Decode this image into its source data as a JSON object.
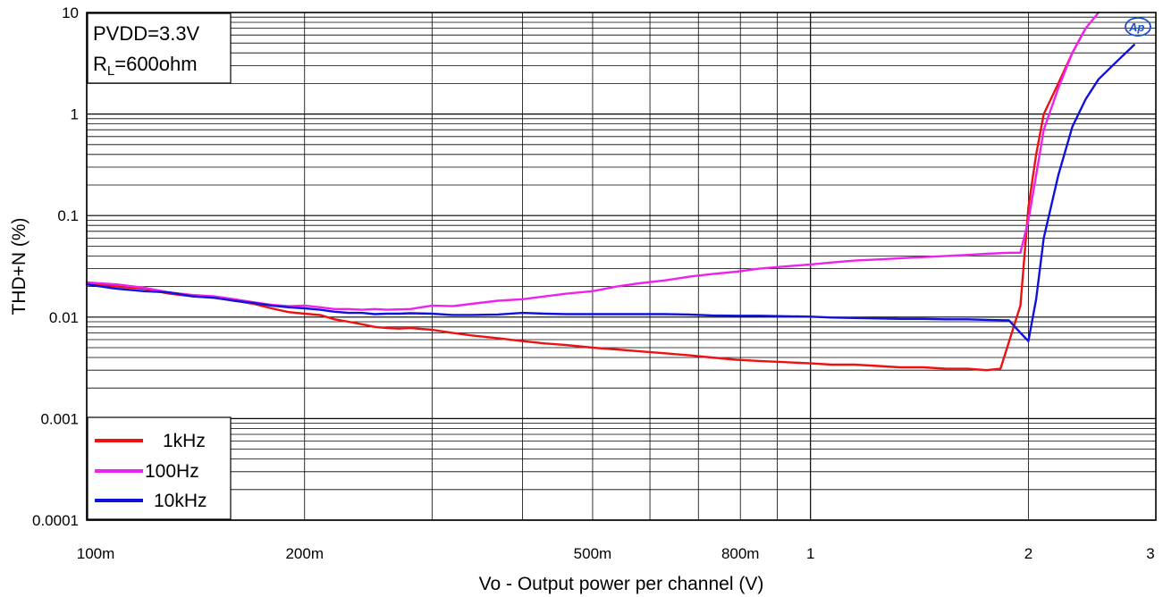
{
  "chart_data": {
    "type": "line",
    "xlabel": "Vo - Output power per channel (V)",
    "ylabel": "THD+N (%)",
    "x_scale": "log",
    "y_scale": "log",
    "xlim": [
      0.1,
      3
    ],
    "ylim": [
      0.0001,
      10
    ],
    "x_ticks": [
      {
        "value": 0.1,
        "label": "100m"
      },
      {
        "value": 0.2,
        "label": "200m"
      },
      {
        "value": 0.5,
        "label": "500m"
      },
      {
        "value": 0.8,
        "label": "800m"
      },
      {
        "value": 1,
        "label": "1"
      },
      {
        "value": 2,
        "label": "2"
      },
      {
        "value": 3,
        "label": "3"
      }
    ],
    "y_ticks": [
      {
        "value": 10,
        "label": "10"
      },
      {
        "value": 1,
        "label": "1"
      },
      {
        "value": 0.1,
        "label": "0.1"
      },
      {
        "value": 0.01,
        "label": "0.01"
      },
      {
        "value": 0.001,
        "label": "0.001"
      },
      {
        "value": 0.0001,
        "label": "0.0001"
      }
    ],
    "grid": true,
    "legend_position": "bottom-left",
    "annotations": {
      "line1": "PVDD=3.3V",
      "line2_main": "R",
      "line2_sub": "L",
      "line2_rest": "=600ohm"
    },
    "series": [
      {
        "name": "1kHz",
        "color": "#ee1111",
        "x": [
          0.1,
          0.11,
          0.12,
          0.13,
          0.14,
          0.15,
          0.16,
          0.17,
          0.18,
          0.19,
          0.2,
          0.21,
          0.22,
          0.23,
          0.24,
          0.25,
          0.26,
          0.27,
          0.28,
          0.3,
          0.32,
          0.34,
          0.37,
          0.4,
          0.43,
          0.46,
          0.5,
          0.54,
          0.58,
          0.63,
          0.68,
          0.73,
          0.79,
          0.85,
          0.92,
          1.0,
          1.07,
          1.15,
          1.24,
          1.33,
          1.43,
          1.54,
          1.65,
          1.75,
          1.83,
          1.95,
          2.0,
          2.05,
          2.1,
          2.2,
          2.3,
          2.4
        ],
        "y": [
          0.022,
          0.02,
          0.019,
          0.017,
          0.016,
          0.0155,
          0.0145,
          0.0135,
          0.0122,
          0.0112,
          0.0108,
          0.0105,
          0.0095,
          0.009,
          0.0085,
          0.008,
          0.0078,
          0.0077,
          0.0078,
          0.0075,
          0.007,
          0.0066,
          0.0062,
          0.0058,
          0.0055,
          0.0053,
          0.005,
          0.0048,
          0.0046,
          0.0044,
          0.0042,
          0.004,
          0.0038,
          0.0037,
          0.0036,
          0.0035,
          0.0034,
          0.0034,
          0.0033,
          0.0032,
          0.0032,
          0.0031,
          0.0031,
          0.003,
          0.0031,
          0.013,
          0.12,
          0.4,
          1.0,
          2.0,
          4.0,
          7.0
        ]
      },
      {
        "name": "100Hz",
        "color": "#ee22ee",
        "x": [
          0.1,
          0.11,
          0.12,
          0.13,
          0.14,
          0.15,
          0.16,
          0.17,
          0.18,
          0.19,
          0.2,
          0.21,
          0.22,
          0.23,
          0.24,
          0.25,
          0.26,
          0.27,
          0.28,
          0.3,
          0.32,
          0.34,
          0.37,
          0.4,
          0.43,
          0.46,
          0.5,
          0.54,
          0.58,
          0.63,
          0.68,
          0.73,
          0.79,
          0.85,
          0.92,
          1.0,
          1.07,
          1.15,
          1.24,
          1.33,
          1.43,
          1.54,
          1.65,
          1.75,
          1.88,
          1.95,
          2.0,
          2.05,
          2.1,
          2.2,
          2.3,
          2.4,
          2.5
        ],
        "y": [
          0.022,
          0.021,
          0.0195,
          0.0175,
          0.0165,
          0.016,
          0.015,
          0.014,
          0.0132,
          0.0128,
          0.013,
          0.0125,
          0.012,
          0.012,
          0.0118,
          0.012,
          0.0118,
          0.0119,
          0.012,
          0.013,
          0.0128,
          0.0135,
          0.0145,
          0.015,
          0.016,
          0.017,
          0.018,
          0.02,
          0.0215,
          0.023,
          0.025,
          0.0265,
          0.028,
          0.03,
          0.0315,
          0.033,
          0.0345,
          0.036,
          0.037,
          0.038,
          0.039,
          0.04,
          0.041,
          0.042,
          0.043,
          0.043,
          0.09,
          0.25,
          0.7,
          1.8,
          4.0,
          7.0,
          10.0
        ]
      },
      {
        "name": "10kHz",
        "color": "#1111dd",
        "x": [
          0.1,
          0.11,
          0.12,
          0.13,
          0.14,
          0.15,
          0.16,
          0.17,
          0.18,
          0.19,
          0.2,
          0.21,
          0.22,
          0.23,
          0.24,
          0.25,
          0.26,
          0.27,
          0.28,
          0.3,
          0.32,
          0.34,
          0.37,
          0.4,
          0.43,
          0.46,
          0.5,
          0.54,
          0.58,
          0.63,
          0.68,
          0.73,
          0.79,
          0.85,
          0.92,
          1.0,
          1.07,
          1.15,
          1.24,
          1.33,
          1.43,
          1.54,
          1.65,
          1.75,
          1.88,
          1.95,
          2.0,
          2.05,
          2.1,
          2.2,
          2.3,
          2.4,
          2.5,
          2.65,
          2.8
        ],
        "y": [
          0.021,
          0.019,
          0.018,
          0.0175,
          0.016,
          0.0155,
          0.0145,
          0.0138,
          0.013,
          0.0125,
          0.0122,
          0.0118,
          0.0113,
          0.011,
          0.011,
          0.0107,
          0.0108,
          0.0108,
          0.0109,
          0.0108,
          0.0105,
          0.0105,
          0.0106,
          0.011,
          0.0108,
          0.0107,
          0.0107,
          0.0107,
          0.0107,
          0.0107,
          0.0106,
          0.0104,
          0.0103,
          0.0103,
          0.0102,
          0.0101,
          0.0099,
          0.0098,
          0.0097,
          0.0096,
          0.0096,
          0.0095,
          0.0095,
          0.0094,
          0.0093,
          0.007,
          0.0058,
          0.015,
          0.06,
          0.25,
          0.75,
          1.4,
          2.2,
          3.3,
          4.8
        ]
      }
    ]
  },
  "logo": {
    "text": "Ap",
    "color": "#1a4fd6"
  }
}
